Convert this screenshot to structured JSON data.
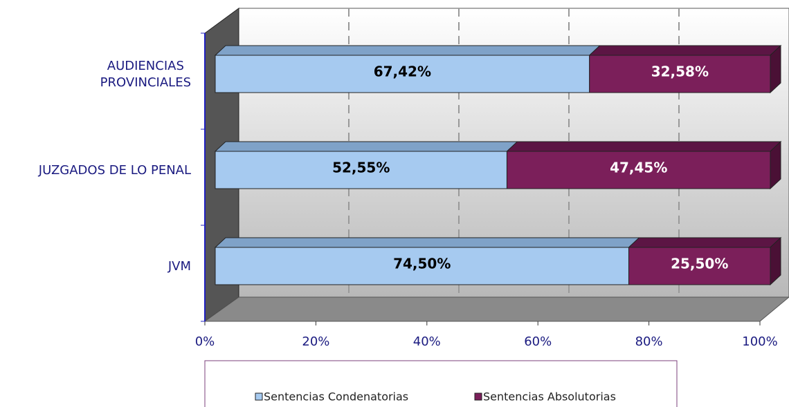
{
  "chart_data": {
    "type": "stacked-bar-3d",
    "categories": [
      "AUDIENCIAS\nPROVINCIALES",
      "JUZGADOS DE LO PENAL",
      "JVM"
    ],
    "series": [
      {
        "name": "Sentencias Condenatorias",
        "color": "#a6caf0",
        "values": [
          67.42,
          52.55,
          74.5
        ],
        "value_labels": [
          "67,42%",
          "52,55%",
          "74,50%"
        ]
      },
      {
        "name": "Sentencias Absolutorias",
        "color": "#7b1f5a",
        "values": [
          32.58,
          47.45,
          25.5
        ],
        "value_labels": [
          "32,58%",
          "47,45%",
          "25,50%"
        ]
      }
    ],
    "xlim": [
      0,
      100
    ],
    "xticks": [
      {
        "value": 0,
        "label": "0%"
      },
      {
        "value": 20,
        "label": "20%"
      },
      {
        "value": 40,
        "label": "40%"
      },
      {
        "value": 60,
        "label": "60%"
      },
      {
        "value": 80,
        "label": "80%"
      },
      {
        "value": 100,
        "label": "100%"
      }
    ],
    "grid": true,
    "legend": "bottom"
  }
}
